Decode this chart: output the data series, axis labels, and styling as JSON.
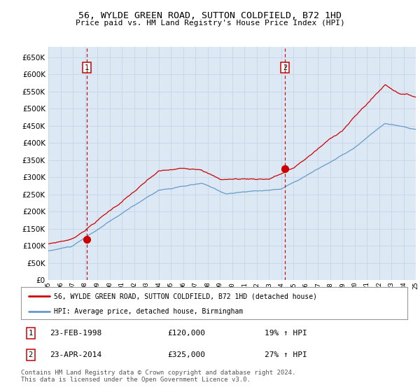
{
  "title1": "56, WYLDE GREEN ROAD, SUTTON COLDFIELD, B72 1HD",
  "title2": "Price paid vs. HM Land Registry's House Price Index (HPI)",
  "x_start_year": 1995,
  "x_end_year": 2025,
  "y_min": 0,
  "y_max": 680000,
  "y_ticks": [
    0,
    50000,
    100000,
    150000,
    200000,
    250000,
    300000,
    350000,
    400000,
    450000,
    500000,
    550000,
    600000,
    650000
  ],
  "background_color": "#dce9f5",
  "outer_bg": "#ffffff",
  "grid_color": "#c8d8e8",
  "red_line_color": "#cc0000",
  "blue_line_color": "#6699cc",
  "sale1_year": 1998.15,
  "sale1_price": 120000,
  "sale2_year": 2014.31,
  "sale2_price": 325000,
  "legend_line1": "56, WYLDE GREEN ROAD, SUTTON COLDFIELD, B72 1HD (detached house)",
  "legend_line2": "HPI: Average price, detached house, Birmingham",
  "annotation1_date": "23-FEB-1998",
  "annotation1_price": "£120,000",
  "annotation1_hpi": "19% ↑ HPI",
  "annotation2_date": "23-APR-2014",
  "annotation2_price": "£325,000",
  "annotation2_hpi": "27% ↑ HPI",
  "footer": "Contains HM Land Registry data © Crown copyright and database right 2024.\nThis data is licensed under the Open Government Licence v3.0."
}
